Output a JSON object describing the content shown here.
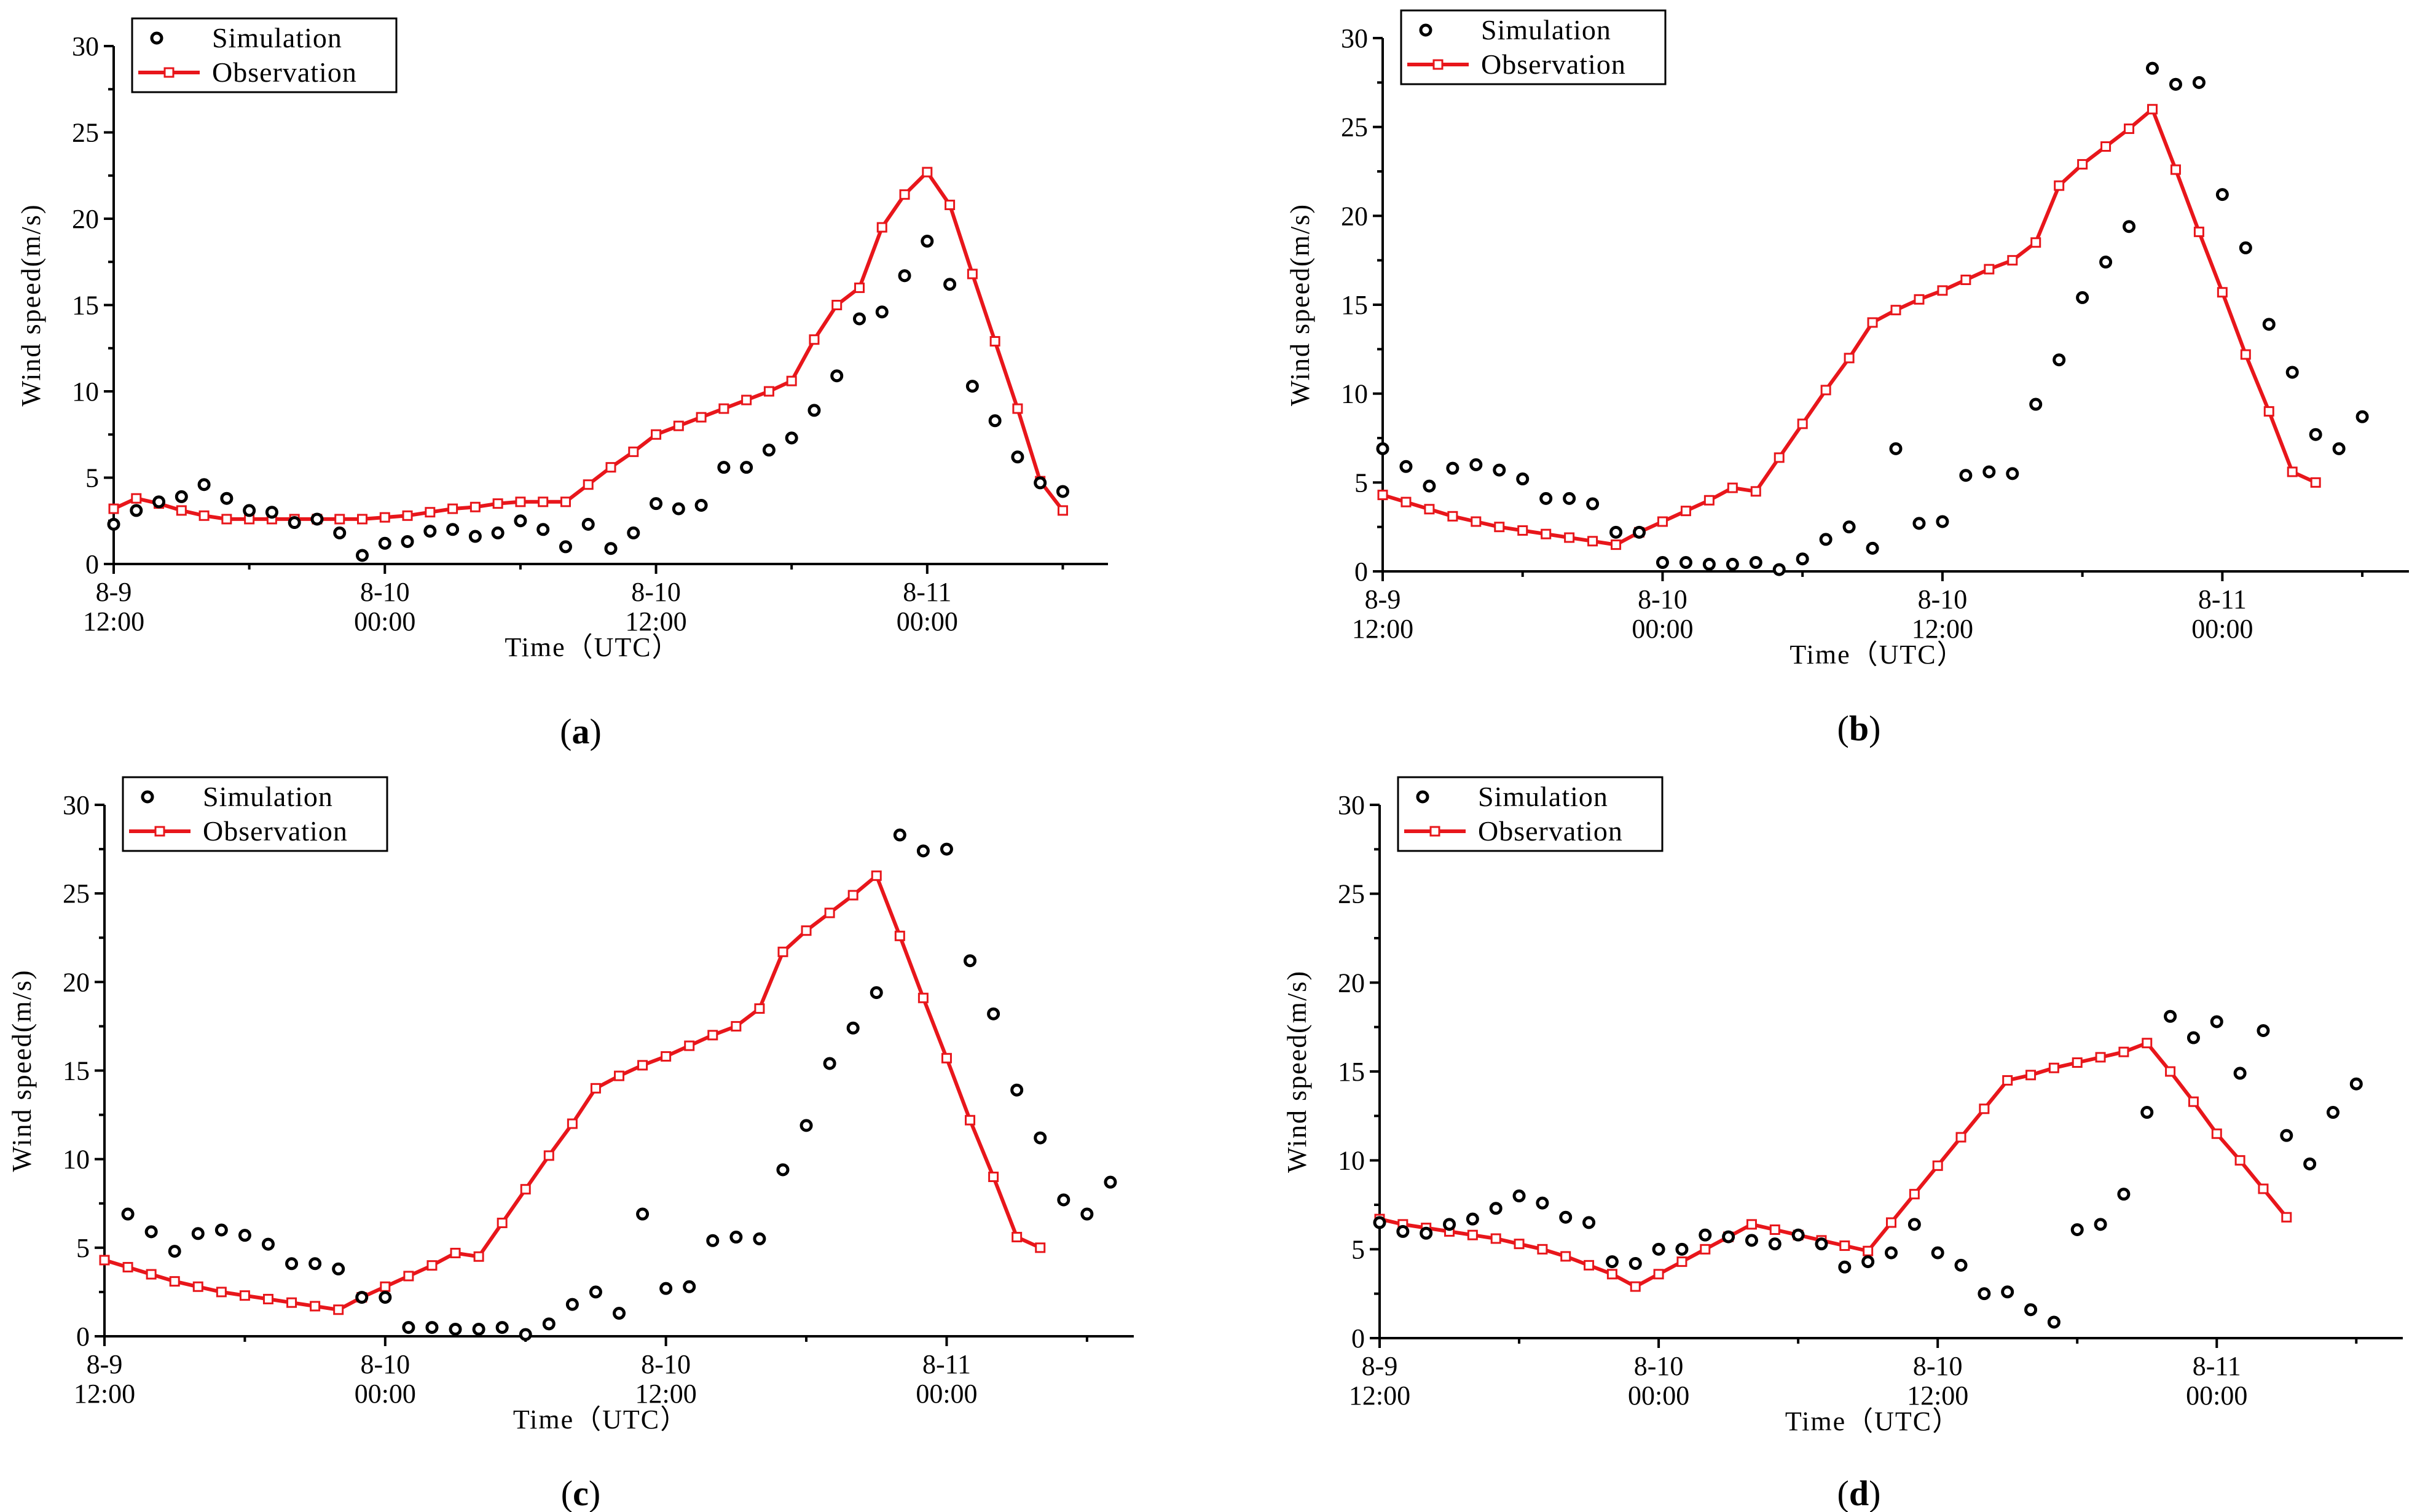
{
  "colors": {
    "observation": "#e8161b",
    "simulation": "#000000",
    "axis": "#000000"
  },
  "chart_data": [
    {
      "panel": "a",
      "type": "scatter+line",
      "caption": "(a)",
      "xlabel": "Time（UTC）",
      "ylabel": "Wind speed(m/s)",
      "ylim": [
        0,
        30
      ],
      "yticks": [
        0,
        5,
        10,
        15,
        20,
        25,
        30
      ],
      "xunit": "hours since 8-9 12:00 UTC",
      "xlim": [
        0,
        44
      ],
      "xticks": [
        {
          "value": 0,
          "line1": "8-9",
          "line2": "12:00"
        },
        {
          "value": 12,
          "line1": "8-10",
          "line2": "00:00"
        },
        {
          "value": 24,
          "line1": "8-10",
          "line2": "12:00"
        },
        {
          "value": 36,
          "line1": "8-11",
          "line2": "00:00"
        }
      ],
      "legend": [
        "Simulation",
        "Observation"
      ],
      "series": [
        {
          "name": "Simulation",
          "style": "markers",
          "x": [
            0,
            1,
            2,
            3,
            4,
            5,
            6,
            7,
            8,
            9,
            10,
            11,
            12,
            13,
            14,
            15,
            16,
            17,
            18,
            19,
            20,
            21,
            22,
            23,
            24,
            25,
            26,
            27,
            28,
            29,
            30,
            31,
            32,
            33,
            34,
            35,
            36,
            37,
            38,
            39,
            40,
            41,
            42,
            43
          ],
          "y": [
            2.3,
            3.1,
            3.6,
            3.9,
            4.6,
            3.8,
            3.1,
            3.0,
            2.4,
            2.6,
            1.8,
            0.5,
            1.2,
            1.3,
            1.9,
            2.0,
            1.6,
            1.8,
            2.5,
            2.0,
            1.0,
            2.3,
            0.9,
            1.8,
            3.5,
            3.2,
            3.4,
            5.6,
            5.6,
            6.6,
            7.3,
            8.9,
            10.9,
            14.2,
            14.6,
            16.7,
            18.7,
            16.2,
            10.3,
            8.3,
            6.2,
            4.7,
            4.2,
            null
          ]
        },
        {
          "name": "Observation",
          "style": "line+markers",
          "x": [
            0,
            1,
            2,
            3,
            4,
            5,
            6,
            7,
            8,
            9,
            10,
            11,
            12,
            13,
            14,
            15,
            16,
            17,
            18,
            19,
            20,
            21,
            22,
            23,
            24,
            25,
            26,
            27,
            28,
            29,
            30,
            31,
            32,
            33,
            34,
            35,
            36,
            37,
            38,
            39,
            40,
            41,
            42
          ],
          "y": [
            3.2,
            3.8,
            3.5,
            3.1,
            2.8,
            2.6,
            2.6,
            2.6,
            2.6,
            2.6,
            2.6,
            2.6,
            2.7,
            2.8,
            3.0,
            3.2,
            3.3,
            3.5,
            3.6,
            3.6,
            3.6,
            4.6,
            5.6,
            6.5,
            7.5,
            8.0,
            8.5,
            9.0,
            9.5,
            10.0,
            10.6,
            13.0,
            15.0,
            16.0,
            19.5,
            21.4,
            22.7,
            20.8,
            16.8,
            12.9,
            9.0,
            4.8,
            3.1
          ]
        }
      ]
    },
    {
      "panel": "b",
      "type": "scatter+line",
      "caption": "(b)",
      "xlabel": "Time（UTC）",
      "ylabel": "Wind speed(m/s)",
      "ylim": [
        0,
        30
      ],
      "yticks": [
        0,
        5,
        10,
        15,
        20,
        25,
        30
      ],
      "xunit": "hours since 8-9 12:00 UTC",
      "xlim": [
        0,
        44
      ],
      "xticks": [
        {
          "value": 0,
          "line1": "8-9",
          "line2": "12:00"
        },
        {
          "value": 12,
          "line1": "8-10",
          "line2": "00:00"
        },
        {
          "value": 24,
          "line1": "8-10",
          "line2": "12:00"
        },
        {
          "value": 36,
          "line1": "8-11",
          "line2": "00:00"
        }
      ],
      "legend": [
        "Simulation",
        "Observation"
      ],
      "series": [
        {
          "name": "Simulation",
          "style": "markers",
          "x": [
            0,
            1,
            2,
            3,
            4,
            5,
            6,
            7,
            8,
            9,
            10,
            11,
            12,
            13,
            14,
            15,
            16,
            17,
            18,
            19,
            20,
            21,
            22,
            23,
            24,
            25,
            26,
            27,
            28,
            29,
            30,
            31,
            32,
            33,
            34,
            35,
            36,
            37,
            38,
            39,
            40,
            41,
            42,
            43
          ],
          "y": [
            6.9,
            5.9,
            4.8,
            5.8,
            6.0,
            5.7,
            5.2,
            4.1,
            4.1,
            3.8,
            2.2,
            2.2,
            0.5,
            0.5,
            0.4,
            0.4,
            0.5,
            0.1,
            0.7,
            1.8,
            2.5,
            1.3,
            6.9,
            2.7,
            2.8,
            5.4,
            5.6,
            5.5,
            9.4,
            11.9,
            15.4,
            17.4,
            19.4,
            28.3,
            27.4,
            27.5,
            21.2,
            18.2,
            13.9,
            11.2,
            7.7,
            6.9,
            8.7,
            null
          ]
        },
        {
          "name": "Observation",
          "style": "line+markers",
          "x": [
            0,
            1,
            2,
            3,
            4,
            5,
            6,
            7,
            8,
            9,
            10,
            11,
            12,
            13,
            14,
            15,
            16,
            17,
            18,
            19,
            20,
            21,
            22,
            23,
            24,
            25,
            26,
            27,
            28,
            29,
            30,
            31,
            32,
            33,
            34,
            35,
            36,
            37,
            38,
            39,
            40,
            41,
            42
          ],
          "y": [
            4.3,
            3.9,
            3.5,
            3.1,
            2.8,
            2.5,
            2.3,
            2.1,
            1.9,
            1.7,
            1.5,
            2.2,
            2.8,
            3.4,
            4.0,
            4.7,
            4.5,
            6.4,
            8.3,
            10.2,
            12.0,
            14.0,
            14.7,
            15.3,
            15.8,
            16.4,
            17.0,
            17.5,
            18.5,
            21.7,
            22.9,
            23.9,
            24.9,
            26.0,
            22.6,
            19.1,
            15.7,
            12.2,
            9.0,
            5.6,
            5.0,
            null,
            null
          ]
        }
      ]
    },
    {
      "panel": "c",
      "type": "scatter+line",
      "caption": "(c)",
      "xlabel": "Time（UTC）",
      "ylabel": "Wind speed(m/s)",
      "ylim": [
        0,
        30
      ],
      "yticks": [
        0,
        5,
        10,
        15,
        20,
        25,
        30
      ],
      "xunit": "hours since 8-9 12:00 UTC",
      "xlim": [
        0,
        44
      ],
      "xticks": [
        {
          "value": 0,
          "line1": "8-9",
          "line2": "12:00"
        },
        {
          "value": 12,
          "line1": "8-10",
          "line2": "00:00"
        },
        {
          "value": 24,
          "line1": "8-10",
          "line2": "12:00"
        },
        {
          "value": 36,
          "line1": "8-11",
          "line2": "00:00"
        }
      ],
      "legend": [
        "Simulation",
        "Observation"
      ],
      "series": [
        {
          "name": "Simulation",
          "style": "markers",
          "x": [
            1,
            2,
            3,
            4,
            5,
            6,
            7,
            8,
            9,
            10,
            11,
            12,
            13,
            14,
            15,
            16,
            17,
            18,
            19,
            20,
            21,
            22,
            23,
            24,
            25,
            26,
            27,
            28,
            29,
            30,
            31,
            32,
            33,
            34,
            35,
            36,
            37,
            38,
            39,
            40,
            41,
            42,
            43
          ],
          "y": [
            6.9,
            5.9,
            4.8,
            5.8,
            6.0,
            5.7,
            5.2,
            4.1,
            4.1,
            3.8,
            2.2,
            2.2,
            0.5,
            0.5,
            0.4,
            0.4,
            0.5,
            0.1,
            0.7,
            1.8,
            2.5,
            1.3,
            6.9,
            2.7,
            2.8,
            5.4,
            5.6,
            5.5,
            9.4,
            11.9,
            15.4,
            17.4,
            19.4,
            28.3,
            27.4,
            27.5,
            21.2,
            18.2,
            13.9,
            11.2,
            7.7,
            6.9,
            8.7
          ]
        },
        {
          "name": "Observation",
          "style": "line+markers",
          "x": [
            0,
            1,
            2,
            3,
            4,
            5,
            6,
            7,
            8,
            9,
            10,
            11,
            12,
            13,
            14,
            15,
            16,
            17,
            18,
            19,
            20,
            21,
            22,
            23,
            24,
            25,
            26,
            27,
            28,
            29,
            30,
            31,
            32,
            33,
            34,
            35,
            36,
            37,
            38,
            39,
            40,
            41,
            42,
            43
          ],
          "y": [
            4.3,
            3.9,
            3.5,
            3.1,
            2.8,
            2.5,
            2.3,
            2.1,
            1.9,
            1.7,
            1.5,
            2.2,
            2.8,
            3.4,
            4.0,
            4.7,
            4.5,
            6.4,
            8.3,
            10.2,
            12.0,
            14.0,
            14.7,
            15.3,
            15.8,
            16.4,
            17.0,
            17.5,
            18.5,
            21.7,
            22.9,
            23.9,
            24.9,
            26.0,
            22.6,
            19.1,
            15.7,
            12.2,
            9.0,
            5.6,
            5.0,
            null,
            null,
            null
          ]
        }
      ]
    },
    {
      "panel": "d",
      "type": "scatter+line",
      "caption": "(d)",
      "xlabel": "Time（UTC）",
      "ylabel": "Wind speed(m/s)",
      "ylim": [
        0,
        30
      ],
      "yticks": [
        0,
        5,
        10,
        15,
        20,
        25,
        30
      ],
      "xunit": "hours since 8-9 12:00 UTC",
      "xlim": [
        0,
        44
      ],
      "xticks": [
        {
          "value": 0,
          "line1": "8-9",
          "line2": "12:00"
        },
        {
          "value": 12,
          "line1": "8-10",
          "line2": "00:00"
        },
        {
          "value": 24,
          "line1": "8-10",
          "line2": "12:00"
        },
        {
          "value": 36,
          "line1": "8-11",
          "line2": "00:00"
        }
      ],
      "legend": [
        "Simulation",
        "Observation"
      ],
      "series": [
        {
          "name": "Simulation",
          "style": "markers",
          "x": [
            0,
            1,
            2,
            3,
            4,
            5,
            6,
            7,
            8,
            9,
            10,
            11,
            12,
            13,
            14,
            15,
            16,
            17,
            18,
            19,
            20,
            21,
            22,
            23,
            24,
            25,
            26,
            27,
            28,
            29,
            30,
            31,
            32,
            33,
            34,
            35,
            36,
            37,
            38,
            39,
            40,
            41,
            42,
            43
          ],
          "y": [
            6.5,
            6.0,
            5.9,
            6.4,
            6.7,
            7.3,
            8.0,
            7.6,
            6.8,
            6.5,
            4.3,
            4.2,
            5.0,
            5.0,
            5.8,
            5.7,
            5.5,
            5.3,
            5.8,
            5.3,
            4.0,
            4.3,
            4.8,
            6.4,
            4.8,
            4.1,
            2.5,
            2.6,
            1.6,
            0.9,
            6.1,
            6.4,
            8.1,
            12.7,
            18.1,
            16.9,
            17.8,
            14.9,
            17.3,
            11.4,
            9.8,
            12.7,
            14.3,
            null
          ]
        },
        {
          "name": "Observation",
          "style": "line+markers",
          "x": [
            0,
            1,
            2,
            3,
            4,
            5,
            6,
            7,
            8,
            9,
            10,
            11,
            12,
            13,
            14,
            15,
            16,
            17,
            18,
            19,
            20,
            21,
            22,
            23,
            24,
            25,
            26,
            27,
            28,
            29,
            30,
            31,
            32,
            33,
            34,
            35,
            36,
            37,
            38,
            39,
            40,
            41,
            42,
            43
          ],
          "y": [
            6.7,
            6.4,
            6.2,
            6.0,
            5.8,
            5.6,
            5.3,
            5.0,
            4.6,
            4.1,
            3.6,
            2.9,
            3.6,
            4.3,
            5.0,
            5.7,
            6.4,
            6.1,
            5.8,
            5.5,
            5.2,
            4.9,
            6.5,
            8.1,
            9.7,
            11.3,
            12.9,
            14.5,
            14.8,
            15.2,
            15.5,
            15.8,
            16.1,
            16.6,
            15.0,
            13.3,
            11.5,
            10.0,
            8.4,
            6.8,
            null,
            null,
            null,
            null
          ]
        }
      ]
    }
  ]
}
